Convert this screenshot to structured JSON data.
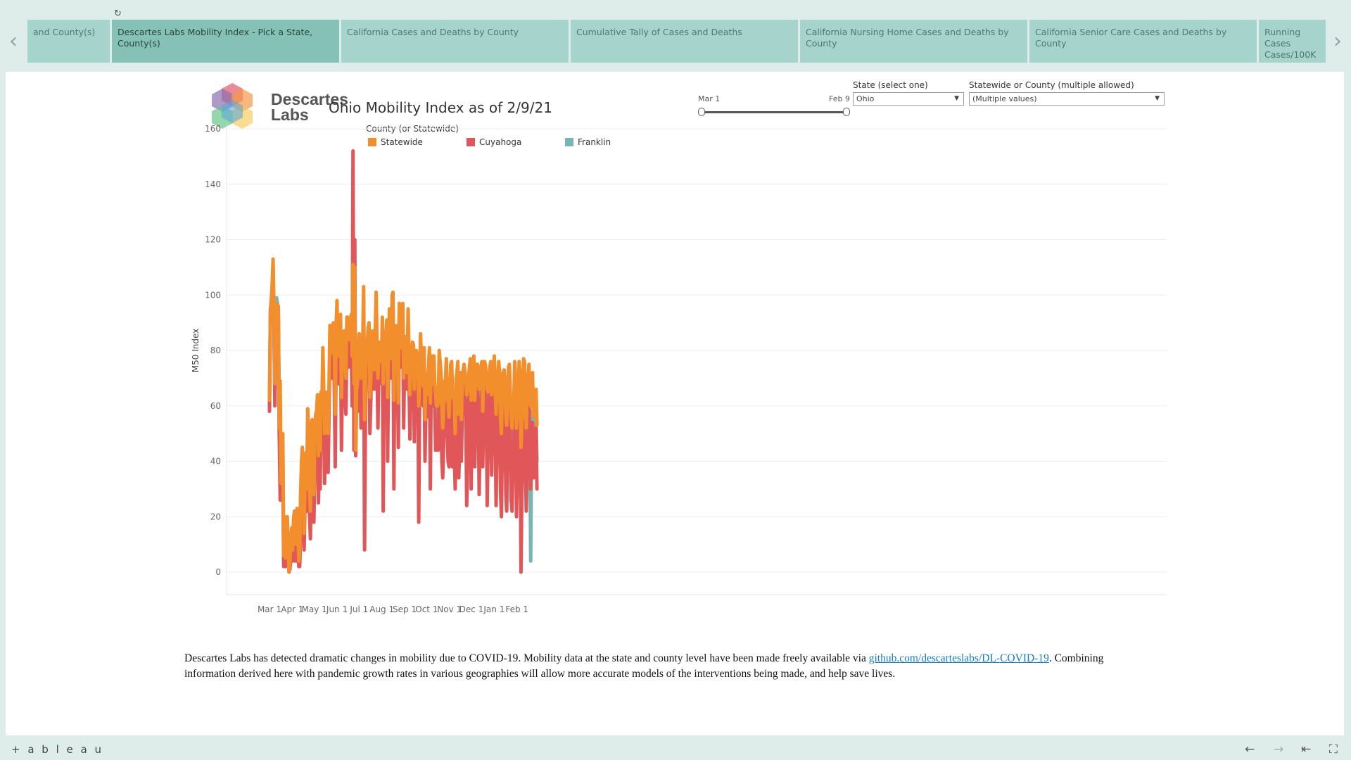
{
  "tabs": [
    {
      "label": "and County(s)",
      "active": false
    },
    {
      "label": "Descartes Labs Mobility Index - Pick a State, County(s)",
      "active": true
    },
    {
      "label": "California Cases and Deaths by County",
      "active": false
    },
    {
      "label": "Cumulative Tally of Cases and Deaths",
      "active": false
    },
    {
      "label": "California Nursing Home Cases and Deaths by County",
      "active": false
    },
    {
      "label": "California Senior Care Cases and Deaths by County",
      "active": false
    },
    {
      "label": "Running Cases Cases/100K",
      "active": false
    }
  ],
  "nav": {
    "prev_icon": "‹",
    "next_icon": "›",
    "refresh_icon": "↻"
  },
  "logo": {
    "line1": "Descartes",
    "line2": "Labs"
  },
  "title": "Ohio Mobility Index as of 2/9/21",
  "slider": {
    "start_label": "Mar 1",
    "end_label": "Feb 9"
  },
  "filters": {
    "state_label": "State (select one)",
    "state_value": "Ohio",
    "county_label": "Statewide or County (multiple allowed)",
    "county_value": "(Multiple values)"
  },
  "legend": {
    "title": "County (or Statewide)"
  },
  "description": {
    "before": "Descartes Labs has detected dramatic changes in mobility due to COVID-19. Mobility data at the state and county level have been made freely available via ",
    "link": "github.com/descarteslabs/DL-COVID-19",
    "after": ".  Combining information derived here with pandemic growth rates in various geographies will allow more accurate models of the interventions being made, and help save lives."
  },
  "footer": {
    "brand": "+ a b l e a u"
  },
  "colors": {
    "Statewide": "#f28e2b",
    "Cuyahoga": "#e15759",
    "Franklin": "#76b7b2"
  },
  "chart_data": {
    "type": "line",
    "title": "Ohio Mobility Index as of 2/9/21",
    "xlabel": "",
    "ylabel": "M50 Index",
    "ylim": [
      0,
      160
    ],
    "yticks": [
      0,
      20,
      40,
      60,
      80,
      100,
      120,
      140,
      160
    ],
    "xticks": [
      "Mar 1",
      "Apr 1",
      "May 1",
      "Jun 1",
      "Jul 1",
      "Aug 1",
      "Sep 1",
      "Oct 1",
      "Nov 1",
      "Dec 1",
      "Jan 1",
      "Feb 1"
    ],
    "xtick_dates": [
      "2020-03-01",
      "2020-04-01",
      "2020-05-01",
      "2020-06-01",
      "2020-07-01",
      "2020-08-01",
      "2020-09-01",
      "2020-10-01",
      "2020-11-01",
      "2020-12-01",
      "2021-01-01",
      "2021-02-01"
    ],
    "x_start": "2020-03-01",
    "x_end": "2021-02-09",
    "grid": true,
    "legend_position": "top-left",
    "series": [
      {
        "name": "Statewide",
        "values": [
          62,
          93,
          97,
          104,
          113,
          94,
          68,
          94,
          97,
          95,
          96,
          52,
          69,
          32,
          44,
          50,
          6,
          20,
          5,
          13,
          20,
          10,
          0,
          4,
          12,
          16,
          8,
          19,
          22,
          15,
          10,
          23,
          15,
          4,
          6,
          28,
          40,
          45,
          36,
          14,
          35,
          43,
          30,
          59,
          52,
          30,
          22,
          50,
          55,
          30,
          28,
          52,
          57,
          58,
          64,
          42,
          55,
          44,
          65,
          60,
          81,
          67,
          50,
          65,
          62,
          52,
          50,
          67,
          89,
          80,
          79,
          89,
          90,
          81,
          57,
          89,
          98,
          80,
          78,
          89,
          93,
          63,
          80,
          86,
          87,
          76,
          70,
          92,
          92,
          84,
          89,
          90,
          93,
          78,
          111,
          68,
          110,
          44,
          66,
          68,
          82,
          86,
          79,
          70,
          84,
          84,
          103,
          55,
          70,
          84,
          82,
          88,
          90,
          63,
          70,
          86,
          87,
          84,
          73,
          86,
          101,
          84,
          70,
          80,
          83,
          82,
          76,
          92,
          68,
          79,
          81,
          86,
          91,
          63,
          81,
          95,
          85,
          77,
          100,
          101,
          62,
          85,
          82,
          89,
          82,
          61,
          97,
          84,
          81,
          84,
          97,
          70,
          85,
          85,
          80,
          72,
          95,
          80,
          64,
          75,
          78,
          83,
          82,
          66,
          76,
          80,
          79,
          79,
          60,
          72,
          86,
          76,
          69,
          67,
          81,
          55,
          68,
          64,
          70,
          74,
          81,
          61,
          78,
          78,
          68,
          78,
          68,
          64,
          60,
          60,
          61,
          80,
          76,
          72,
          60,
          52,
          60,
          69,
          68,
          77,
          62,
          62,
          56,
          66,
          75,
          76,
          63,
          66,
          63,
          50,
          70,
          72,
          76,
          57,
          66,
          72,
          55,
          70,
          73,
          75,
          72,
          68,
          64,
          66,
          70,
          74,
          77,
          62,
          73,
          74,
          78,
          62,
          70,
          75,
          75,
          70,
          66,
          71,
          74,
          76,
          58,
          72,
          76,
          75,
          71,
          66,
          65,
          70,
          74,
          76,
          64,
          68,
          72,
          78,
          67,
          57,
          65,
          70,
          76,
          72,
          56,
          50,
          66,
          72,
          73,
          69,
          57,
          53,
          64,
          74,
          75,
          64,
          56,
          52,
          60,
          63,
          76,
          70,
          52,
          60,
          63,
          76,
          72,
          45,
          54,
          58,
          77,
          76,
          62,
          52,
          65,
          70,
          75,
          62,
          60,
          70,
          72,
          56,
          60,
          64,
          66,
          53
        ]
      },
      {
        "name": "Cuyahoga",
        "values": [
          58,
          94,
          98,
          103,
          110,
          90,
          60,
          95,
          96,
          94,
          93,
          50,
          26,
          28,
          40,
          36,
          2,
          6,
          2,
          4,
          14,
          5,
          0,
          1,
          5,
          10,
          4,
          14,
          10,
          4,
          4,
          16,
          8,
          2,
          2,
          12,
          30,
          38,
          28,
          8,
          26,
          38,
          22,
          50,
          42,
          22,
          12,
          30,
          40,
          20,
          18,
          40,
          42,
          48,
          52,
          25,
          40,
          30,
          56,
          48,
          72,
          57,
          32,
          56,
          52,
          40,
          36,
          58,
          80,
          70,
          70,
          78,
          83,
          66,
          38,
          80,
          90,
          70,
          68,
          80,
          84,
          44,
          70,
          78,
          79,
          64,
          57,
          82,
          85,
          74,
          82,
          84,
          86,
          60,
          152,
          44,
          120,
          42,
          64,
          58,
          72,
          78,
          70,
          52,
          76,
          76,
          96,
          8,
          60,
          78,
          72,
          80,
          84,
          50,
          62,
          78,
          80,
          76,
          66,
          80,
          95,
          76,
          52,
          72,
          75,
          76,
          68,
          88,
          22,
          70,
          76,
          80,
          86,
          40,
          74,
          90,
          80,
          70,
          95,
          96,
          30,
          78,
          74,
          82,
          76,
          45,
          92,
          78,
          74,
          78,
          90,
          52,
          76,
          78,
          74,
          66,
          88,
          72,
          48,
          66,
          72,
          76,
          76,
          47,
          68,
          74,
          72,
          70,
          18,
          66,
          80,
          70,
          62,
          60,
          74,
          40,
          60,
          56,
          64,
          68,
          75,
          30,
          70,
          70,
          60,
          70,
          60,
          44,
          52,
          53,
          44,
          70,
          64,
          60,
          40,
          34,
          46,
          60,
          58,
          70,
          52,
          40,
          38,
          56,
          68,
          70,
          38,
          48,
          44,
          30,
          60,
          64,
          68,
          34,
          46,
          62,
          40,
          58,
          66,
          68,
          62,
          56,
          24,
          40,
          62,
          64,
          70,
          30,
          62,
          66,
          72,
          38,
          56,
          66,
          66,
          60,
          28,
          52,
          60,
          66,
          38,
          56,
          68,
          66,
          60,
          24,
          44,
          58,
          66,
          68,
          35,
          54,
          60,
          70,
          55,
          24,
          46,
          55,
          64,
          62,
          30,
          20,
          44,
          58,
          62,
          58,
          28,
          22,
          45,
          60,
          66,
          50,
          26,
          22,
          38,
          44,
          64,
          58,
          20,
          36,
          40,
          64,
          60,
          0,
          28,
          38,
          62,
          60,
          42,
          22,
          40,
          52,
          62,
          46,
          30,
          48,
          54,
          34,
          40,
          50,
          52,
          30
        ]
      },
      {
        "name": "Franklin",
        "values": [
          60,
          95,
          97,
          101,
          108,
          92,
          62,
          93,
          99,
          97,
          92,
          48,
          52,
          30,
          42,
          44,
          4,
          10,
          4,
          8,
          16,
          6,
          1,
          3,
          9,
          12,
          6,
          17,
          18,
          10,
          7,
          20,
          12,
          3,
          4,
          20,
          34,
          42,
          32,
          12,
          32,
          40,
          26,
          54,
          46,
          26,
          16,
          40,
          46,
          24,
          22,
          46,
          48,
          52,
          58,
          34,
          46,
          36,
          60,
          54,
          76,
          62,
          40,
          60,
          56,
          46,
          42,
          62,
          84,
          74,
          74,
          82,
          86,
          72,
          46,
          82,
          92,
          74,
          72,
          84,
          86,
          50,
          74,
          80,
          82,
          68,
          62,
          84,
          88,
          78,
          84,
          86,
          88,
          66,
          72,
          62,
          76,
          42,
          62,
          62,
          76,
          80,
          74,
          58,
          78,
          78,
          98,
          48,
          64,
          80,
          76,
          82,
          86,
          56,
          64,
          80,
          82,
          78,
          68,
          82,
          96,
          78,
          58,
          74,
          78,
          78,
          70,
          88,
          60,
          74,
          78,
          82,
          88,
          52,
          76,
          92,
          82,
          72,
          96,
          98,
          50,
          80,
          76,
          84,
          78,
          50,
          94,
          80,
          76,
          80,
          92,
          58,
          80,
          80,
          76,
          68,
          90,
          74,
          52,
          70,
          74,
          78,
          78,
          52,
          70,
          76,
          74,
          74,
          45,
          68,
          82,
          72,
          64,
          62,
          76,
          48,
          62,
          58,
          66,
          70,
          78,
          48,
          72,
          72,
          62,
          72,
          62,
          52,
          54,
          55,
          50,
          74,
          70,
          64,
          48,
          42,
          52,
          64,
          62,
          72,
          56,
          48,
          44,
          60,
          70,
          72,
          48,
          56,
          52,
          40,
          64,
          68,
          72,
          44,
          54,
          66,
          46,
          62,
          68,
          70,
          66,
          60,
          38,
          50,
          64,
          68,
          72,
          46,
          66,
          68,
          74,
          48,
          62,
          68,
          70,
          64,
          42,
          60,
          66,
          70,
          48,
          62,
          70,
          70,
          64,
          42,
          52,
          62,
          68,
          70,
          46,
          60,
          64,
          72,
          60,
          38,
          54,
          60,
          68,
          66,
          40,
          32,
          52,
          62,
          66,
          62,
          40,
          34,
          52,
          64,
          70,
          56,
          36,
          34,
          46,
          52,
          68,
          62,
          30,
          46,
          50,
          68,
          64,
          10,
          38,
          46,
          68,
          66,
          50,
          30,
          50,
          58,
          66,
          52,
          4,
          50,
          58,
          40,
          48,
          56,
          58,
          40
        ]
      }
    ]
  }
}
